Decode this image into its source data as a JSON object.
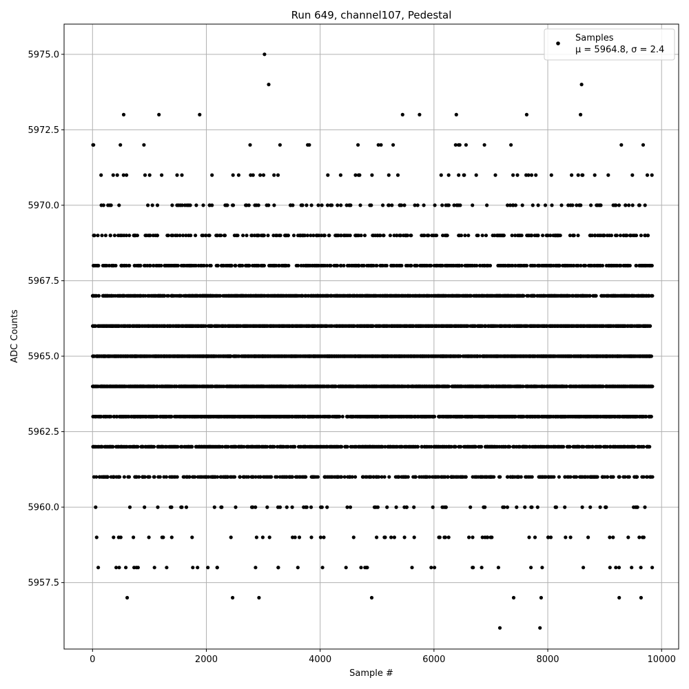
{
  "chart_data": {
    "type": "scatter",
    "title": "Run 649, channel107, Pedestal",
    "xlabel": "Sample #",
    "ylabel": "ADC Counts",
    "xlim": [
      -500,
      10300
    ],
    "ylim": [
      5955.3,
      5976.0
    ],
    "x_ticks": [
      0,
      2000,
      4000,
      6000,
      8000,
      10000
    ],
    "x_tick_labels": [
      "0",
      "2000",
      "4000",
      "6000",
      "8000",
      "10000"
    ],
    "y_ticks": [
      5957.5,
      5960.0,
      5962.5,
      5965.0,
      5967.5,
      5970.0,
      5972.5,
      5975.0
    ],
    "y_tick_labels": [
      "5957.5",
      "5960.0",
      "5962.5",
      "5965.0",
      "5967.5",
      "5970.0",
      "5972.5",
      "5975.0"
    ],
    "grid": true,
    "legend_position": "top-right",
    "series": [
      {
        "name": "Samples",
        "color": "#000000",
        "marker": "dot",
        "x_range": [
          0,
          9840
        ],
        "points_per_level": [
          [
            5956,
            2
          ],
          [
            5957,
            8
          ],
          [
            5958,
            40
          ],
          [
            5959,
            55
          ],
          [
            5960,
            70
          ],
          [
            5961,
            380
          ],
          [
            5962,
            650
          ],
          [
            5963,
            1050
          ],
          [
            5964,
            1400
          ],
          [
            5965,
            1500
          ],
          [
            5966,
            1350
          ],
          [
            5967,
            1050
          ],
          [
            5968,
            550
          ],
          [
            5969,
            260
          ],
          [
            5970,
            120
          ],
          [
            5971,
            50
          ],
          [
            5972,
            20
          ],
          [
            5973,
            8
          ],
          [
            5974,
            2
          ],
          [
            5975,
            1
          ]
        ]
      }
    ],
    "legend_entries": [
      {
        "label": "Samples",
        "stats": "μ = 5964.8, σ = 2.4"
      }
    ]
  }
}
